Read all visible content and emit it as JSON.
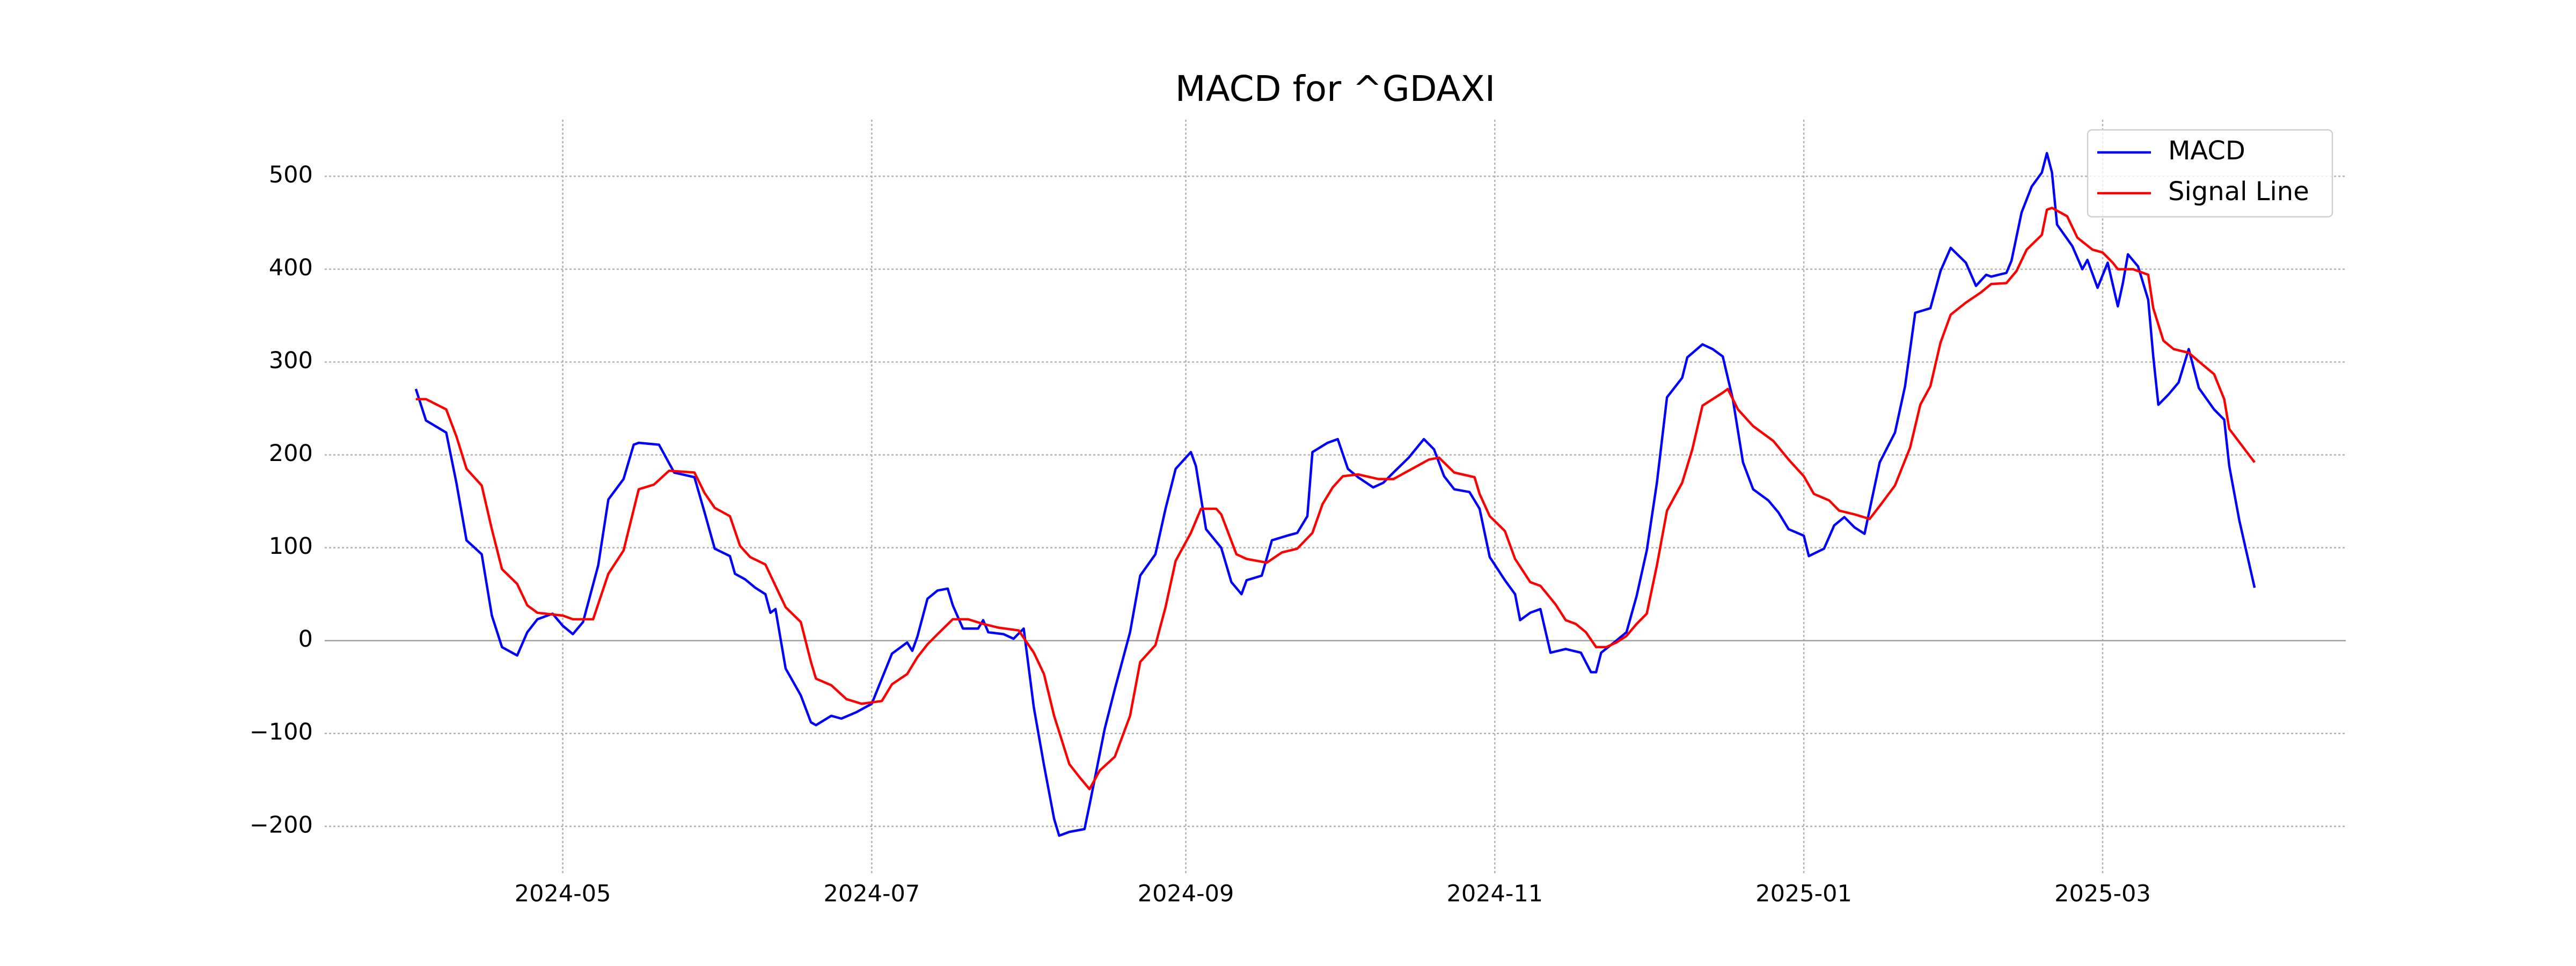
{
  "chart_data": {
    "type": "line",
    "title": "MACD for ^GDAXI",
    "xlim": [
      "2024-03-15",
      "2025-04-18"
    ],
    "xticks": [
      "2024-05",
      "2024-07",
      "2024-09",
      "2024-11",
      "2025-01",
      "2025-03"
    ],
    "ylim": [
      -251,
      561
    ],
    "yticks": [
      {
        "value": -200,
        "label": "−200"
      },
      {
        "value": -100,
        "label": "−100"
      },
      0,
      100,
      200,
      300,
      400,
      500
    ],
    "grid": true,
    "hline": 0,
    "hline_color": "#a0a0a0",
    "legend": "upper right",
    "series": [
      {
        "name": "MACD",
        "color": "#0000ff",
        "x": [
          "2024-04-02",
          "2024-04-04",
          "2024-04-08",
          "2024-04-10",
          "2024-04-12",
          "2024-04-15",
          "2024-04-17",
          "2024-04-19",
          "2024-04-22",
          "2024-04-24",
          "2024-04-26",
          "2024-04-29",
          "2024-05-01",
          "2024-05-03",
          "2024-05-05",
          "2024-05-08",
          "2024-05-10",
          "2024-05-13",
          "2024-05-15",
          "2024-05-16",
          "2024-05-20",
          "2024-05-23",
          "2024-05-27",
          "2024-05-29",
          "2024-05-31",
          "2024-06-03",
          "2024-06-04",
          "2024-06-06",
          "2024-06-08",
          "2024-06-10",
          "2024-06-11",
          "2024-06-12",
          "2024-06-14",
          "2024-06-17",
          "2024-06-19",
          "2024-06-20",
          "2024-06-23",
          "2024-06-25",
          "2024-06-28",
          "2024-07-01",
          "2024-07-03",
          "2024-07-05",
          "2024-07-08",
          "2024-07-09",
          "2024-07-10",
          "2024-07-12",
          "2024-07-14",
          "2024-07-16",
          "2024-07-17",
          "2024-07-19",
          "2024-07-22",
          "2024-07-23",
          "2024-07-24",
          "2024-07-27",
          "2024-07-29",
          "2024-07-31",
          "2024-08-02",
          "2024-08-04",
          "2024-08-06",
          "2024-08-07",
          "2024-08-09",
          "2024-08-12",
          "2024-08-13",
          "2024-08-16",
          "2024-08-18",
          "2024-08-21",
          "2024-08-23",
          "2024-08-26",
          "2024-08-28",
          "2024-08-30",
          "2024-09-02",
          "2024-09-03",
          "2024-09-05",
          "2024-09-08",
          "2024-09-10",
          "2024-09-12",
          "2024-09-13",
          "2024-09-16",
          "2024-09-18",
          "2024-09-21",
          "2024-09-23",
          "2024-09-25",
          "2024-09-26",
          "2024-09-29",
          "2024-10-01",
          "2024-10-03",
          "2024-10-05",
          "2024-10-08",
          "2024-10-10",
          "2024-10-12",
          "2024-10-15",
          "2024-10-18",
          "2024-10-20",
          "2024-10-22",
          "2024-10-24",
          "2024-10-27",
          "2024-10-29",
          "2024-10-31",
          "2024-11-03",
          "2024-11-05",
          "2024-11-06",
          "2024-11-08",
          "2024-11-10",
          "2024-11-12",
          "2024-11-15",
          "2024-11-18",
          "2024-11-20",
          "2024-11-21",
          "2024-11-22",
          "2024-11-25",
          "2024-11-27",
          "2024-11-29",
          "2024-12-01",
          "2024-12-03",
          "2024-12-05",
          "2024-12-08",
          "2024-12-09",
          "2024-12-12",
          "2024-12-14",
          "2024-12-16",
          "2024-12-18",
          "2024-12-20",
          "2024-12-22",
          "2024-12-25",
          "2024-12-27",
          "2024-12-29",
          "2025-01-01",
          "2025-01-02",
          "2025-01-05",
          "2025-01-07",
          "2025-01-09",
          "2025-01-11",
          "2025-01-13",
          "2025-01-16",
          "2025-01-19",
          "2025-01-21",
          "2025-01-23",
          "2025-01-26",
          "2025-01-28",
          "2025-01-30",
          "2025-02-02",
          "2025-02-04",
          "2025-02-06",
          "2025-02-07",
          "2025-02-10",
          "2025-02-11",
          "2025-02-13",
          "2025-02-15",
          "2025-02-17",
          "2025-02-18",
          "2025-02-19",
          "2025-02-20",
          "2025-02-23",
          "2025-02-25",
          "2025-02-26",
          "2025-02-28",
          "2025-03-02",
          "2025-03-04",
          "2025-03-05",
          "2025-03-06",
          "2025-03-08",
          "2025-03-10",
          "2025-03-11",
          "2025-03-12",
          "2025-03-14",
          "2025-03-16",
          "2025-03-18",
          "2025-03-20",
          "2025-03-23",
          "2025-03-25",
          "2025-03-26",
          "2025-03-28",
          "2025-03-31"
        ],
        "values": [
          271,
          237,
          224,
          170,
          108,
          93,
          27,
          -7,
          -16,
          9,
          23,
          29,
          16,
          7,
          20,
          81,
          152,
          174,
          211,
          213,
          211,
          181,
          176,
          138,
          99,
          91,
          72,
          66,
          57,
          50,
          30,
          34,
          -30,
          -59,
          -88,
          -91,
          -81,
          -84,
          -77,
          -68,
          -41,
          -14,
          -2,
          -11,
          4,
          45,
          54,
          56,
          38,
          13,
          13,
          22,
          9,
          7,
          2,
          13,
          -72,
          -134,
          -192,
          -210,
          -206,
          -203,
          -177,
          -95,
          -52,
          9,
          70,
          93,
          142,
          185,
          203,
          188,
          120,
          100,
          63,
          50,
          65,
          70,
          108,
          113,
          116,
          134,
          203,
          213,
          217,
          185,
          176,
          165,
          170,
          181,
          197,
          217,
          206,
          177,
          163,
          160,
          142,
          90,
          65,
          50,
          22,
          30,
          34,
          -13,
          -9,
          -13,
          -34,
          -34,
          -13,
          0,
          9,
          48,
          97,
          170,
          262,
          283,
          305,
          319,
          314,
          306,
          260,
          192,
          163,
          151,
          138,
          120,
          113,
          91,
          99,
          124,
          133,
          122,
          115,
          192,
          224,
          274,
          353,
          358,
          398,
          423,
          407,
          382,
          394,
          392,
          396,
          409,
          461,
          489,
          504,
          525,
          504,
          448,
          425,
          400,
          410,
          380,
          407,
          360,
          385,
          416,
          403,
          367,
          306,
          254,
          265,
          278,
          314,
          272,
          249,
          238,
          188,
          129,
          57
        ]
      },
      {
        "name": "Signal Line",
        "color": "#ff0000",
        "x": [
          "2024-04-02",
          "2024-04-04",
          "2024-04-08",
          "2024-04-10",
          "2024-04-12",
          "2024-04-15",
          "2024-04-17",
          "2024-04-19",
          "2024-04-22",
          "2024-04-24",
          "2024-04-26",
          "2024-05-01",
          "2024-05-03",
          "2024-05-07",
          "2024-05-10",
          "2024-05-13",
          "2024-05-16",
          "2024-05-19",
          "2024-05-22",
          "2024-05-27",
          "2024-05-29",
          "2024-05-31",
          "2024-06-03",
          "2024-06-05",
          "2024-06-07",
          "2024-06-10",
          "2024-06-12",
          "2024-06-14",
          "2024-06-17",
          "2024-06-19",
          "2024-06-20",
          "2024-06-23",
          "2024-06-26",
          "2024-06-29",
          "2024-07-03",
          "2024-07-05",
          "2024-07-08",
          "2024-07-10",
          "2024-07-12",
          "2024-07-14",
          "2024-07-17",
          "2024-07-20",
          "2024-07-23",
          "2024-07-26",
          "2024-07-30",
          "2024-08-02",
          "2024-08-04",
          "2024-08-06",
          "2024-08-09",
          "2024-08-11",
          "2024-08-13",
          "2024-08-15",
          "2024-08-18",
          "2024-08-21",
          "2024-08-23",
          "2024-08-26",
          "2024-08-28",
          "2024-08-30",
          "2024-09-02",
          "2024-09-04",
          "2024-09-07",
          "2024-09-08",
          "2024-09-11",
          "2024-09-13",
          "2024-09-17",
          "2024-09-20",
          "2024-09-23",
          "2024-09-26",
          "2024-09-28",
          "2024-09-30",
          "2024-10-02",
          "2024-10-05",
          "2024-10-09",
          "2024-10-12",
          "2024-10-16",
          "2024-10-19",
          "2024-10-21",
          "2024-10-24",
          "2024-10-28",
          "2024-10-29",
          "2024-10-31",
          "2024-11-03",
          "2024-11-05",
          "2024-11-08",
          "2024-11-10",
          "2024-11-13",
          "2024-11-15",
          "2024-11-17",
          "2024-11-19",
          "2024-11-21",
          "2024-11-23",
          "2024-11-25",
          "2024-11-27",
          "2024-11-29",
          "2024-12-01",
          "2024-12-03",
          "2024-12-05",
          "2024-12-08",
          "2024-12-10",
          "2024-12-12",
          "2024-12-16",
          "2024-12-17",
          "2024-12-19",
          "2024-12-22",
          "2024-12-26",
          "2024-12-29",
          "2025-01-01",
          "2025-01-03",
          "2025-01-06",
          "2025-01-08",
          "2025-01-11",
          "2025-01-14",
          "2025-01-16",
          "2025-01-19",
          "2025-01-22",
          "2025-01-24",
          "2025-01-26",
          "2025-01-28",
          "2025-01-30",
          "2025-02-02",
          "2025-02-05",
          "2025-02-07",
          "2025-02-10",
          "2025-02-12",
          "2025-02-14",
          "2025-02-17",
          "2025-02-18",
          "2025-02-19",
          "2025-02-22",
          "2025-02-24",
          "2025-02-27",
          "2025-03-01",
          "2025-03-03",
          "2025-03-04",
          "2025-03-07",
          "2025-03-10",
          "2025-03-11",
          "2025-03-13",
          "2025-03-15",
          "2025-03-18",
          "2025-03-21",
          "2025-03-23",
          "2025-03-25",
          "2025-03-26",
          "2025-03-31"
        ],
        "values": [
          260,
          260,
          249,
          220,
          185,
          167,
          120,
          77,
          61,
          38,
          30,
          27,
          23,
          23,
          72,
          97,
          163,
          168,
          183,
          181,
          159,
          143,
          134,
          102,
          90,
          82,
          59,
          36,
          20,
          -23,
          -41,
          -48,
          -63,
          -68,
          -65,
          -47,
          -36,
          -18,
          -4,
          7,
          23,
          23,
          18,
          14,
          11,
          -13,
          -36,
          -81,
          -133,
          -147,
          -160,
          -140,
          -125,
          -81,
          -23,
          -5,
          36,
          86,
          116,
          142,
          142,
          136,
          93,
          88,
          84,
          95,
          99,
          116,
          147,
          165,
          177,
          179,
          174,
          174,
          186,
          195,
          197,
          181,
          176,
          158,
          134,
          118,
          88,
          63,
          59,
          39,
          22,
          18,
          9,
          -7,
          -7,
          -2,
          5,
          18,
          29,
          81,
          140,
          170,
          206,
          253,
          267,
          271,
          249,
          231,
          215,
          195,
          177,
          158,
          151,
          140,
          136,
          131,
          145,
          167,
          208,
          254,
          274,
          321,
          351,
          364,
          375,
          384,
          385,
          398,
          421,
          437,
          464,
          466,
          457,
          434,
          421,
          418,
          407,
          400,
          400,
          394,
          358,
          323,
          314,
          310,
          296,
          287,
          260,
          228,
          192
        ]
      }
    ]
  }
}
